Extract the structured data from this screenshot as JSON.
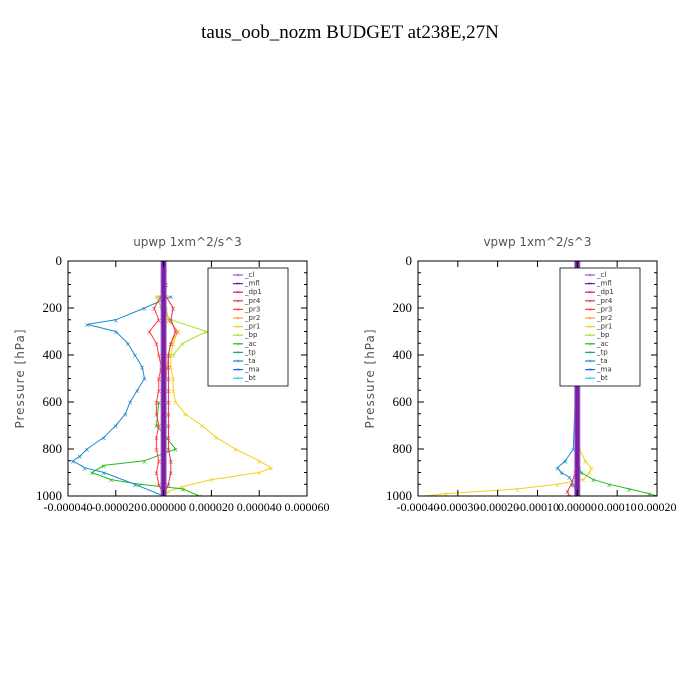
{
  "page": {
    "title": "taus_oob_nozm  BUDGET at238E,27N"
  },
  "legend_entries": [
    "_cl",
    "_mfl",
    "_dp1",
    "_pr4",
    "_pr3",
    "_pr2",
    "_pr1",
    "_bp",
    "_ac",
    "_tp",
    "_ta",
    "_ma",
    "_bt"
  ],
  "colors": {
    "_cl": "#9a5fd0",
    "_mfl": "#7a1fa0",
    "_dp1": "#c81e6e",
    "_pr4": "#e0304a",
    "_pr3": "#ff3c3c",
    "_pr2": "#ff9a3c",
    "_pr1": "#f2d21c",
    "_bp": "#a8e030",
    "_ac": "#22bb22",
    "_tp": "#22a0a0",
    "_ta": "#1c8ccc",
    "_ma": "#2a6ad0",
    "_bt": "#22d0d8"
  },
  "chart_data": [
    {
      "type": "line",
      "title": "upwp   1xm^2/s^3",
      "ylabel": "Pressure [hPa]",
      "xlim": [
        -4e-05,
        6e-05
      ],
      "ylim": [
        1000,
        0
      ],
      "y_ticks": [
        0,
        200,
        400,
        600,
        800,
        1000
      ],
      "y_tick_labels": [
        "0",
        "200",
        "400",
        "600",
        "800",
        "1000"
      ],
      "x_ticks": [
        -4e-05,
        -2e-05,
        0,
        2e-05,
        4e-05,
        6e-05
      ],
      "x_tick_labels": [
        "-0.000040",
        "-0.000020",
        "0.000000",
        "0.000020",
        "0.000040",
        "0.000060"
      ],
      "legend_position": "upper-right",
      "series": [
        {
          "name": "_pr1",
          "y": [
            50,
            100,
            150,
            200,
            250,
            300,
            350,
            400,
            450,
            500,
            550,
            600,
            650,
            700,
            750,
            800,
            850,
            880,
            900,
            930,
            960,
            980,
            1000
          ],
          "x": [
            0,
            5e-07,
            -8e-07,
            5e-07,
            2e-06,
            6e-06,
            4e-06,
            3e-06,
            3e-06,
            4e-06,
            4e-06,
            5e-06,
            9e-06,
            1.6e-05,
            2.2e-05,
            3e-05,
            4e-05,
            4.5e-05,
            4e-05,
            2e-05,
            8e-06,
            2e-06,
            0
          ]
        },
        {
          "name": "_pr2",
          "y": [
            150,
            200,
            250,
            300,
            350,
            400,
            450,
            500
          ],
          "x": [
            -2e-06,
            1e-06,
            2e-06,
            6e-06,
            3e-06,
            2e-06,
            1.5e-06,
            1e-06
          ]
        },
        {
          "name": "_bp",
          "y": [
            150,
            200,
            250,
            300,
            350,
            400
          ],
          "x": [
            -3e-06,
            -1e-06,
            3e-06,
            1.8e-05,
            8e-06,
            4e-06
          ]
        },
        {
          "name": "_ac",
          "y": [
            600,
            700,
            800,
            850,
            870,
            900,
            930,
            950,
            970,
            1000
          ],
          "x": [
            -2e-06,
            -3e-06,
            5e-06,
            -8e-06,
            -2.5e-05,
            -3e-05,
            -2.2e-05,
            -1e-05,
            8e-06,
            1.5e-05
          ]
        },
        {
          "name": "_ta",
          "y": [
            150,
            200,
            250,
            270,
            300,
            350,
            400,
            450,
            500,
            550,
            600,
            650,
            700,
            750,
            800,
            830,
            850,
            880,
            900,
            950,
            1000
          ],
          "x": [
            3e-06,
            -8e-06,
            -2e-05,
            -3.2e-05,
            -2e-05,
            -1.5e-05,
            -1.2e-05,
            -9e-06,
            -8e-06,
            -1.1e-05,
            -1.4e-05,
            -1.6e-05,
            -2e-05,
            -2.5e-05,
            -3.2e-05,
            -3.5e-05,
            -3.8e-05,
            -3.3e-05,
            -2.5e-05,
            -1.2e-05,
            0
          ]
        },
        {
          "name": "_pr3",
          "y": [
            50,
            100,
            150,
            200,
            250,
            300,
            350,
            400,
            450,
            500,
            550,
            600,
            650,
            700,
            750,
            800,
            850,
            900,
            950,
            1000
          ],
          "x": [
            0,
            1e-06,
            -1e-06,
            -4e-06,
            -2e-06,
            -6e-06,
            -3e-06,
            -2e-06,
            -1e-06,
            -2e-06,
            -2e-06,
            -3e-06,
            -3e-06,
            -2e-06,
            -3e-06,
            -3e-06,
            -2e-06,
            -3e-06,
            -2e-06,
            0
          ]
        },
        {
          "name": "_pr4",
          "y": [
            50,
            100,
            150,
            200,
            250,
            300,
            350,
            400,
            450,
            500,
            550,
            600,
            650,
            700,
            750,
            800,
            850,
            900,
            950,
            1000
          ],
          "x": [
            0,
            8e-07,
            1e-06,
            4e-06,
            3e-06,
            5e-06,
            3e-06,
            2e-06,
            2e-06,
            2e-06,
            2e-06,
            2e-06,
            2e-06,
            2e-06,
            2e-06,
            2e-06,
            3e-06,
            3e-06,
            2e-06,
            0
          ]
        },
        {
          "name": "_cl",
          "y": [
            0,
            1000
          ],
          "x": [
            0,
            0
          ]
        },
        {
          "name": "_mfl",
          "y": [
            0,
            1000
          ],
          "x": [
            0,
            0
          ]
        }
      ]
    },
    {
      "type": "line",
      "title": "vpwp   1xm^2/s^3",
      "ylabel": "Pressure [hPa]",
      "xlim": [
        -0.0004,
        0.0002
      ],
      "ylim": [
        1000,
        0
      ],
      "y_ticks": [
        0,
        200,
        400,
        600,
        800,
        1000
      ],
      "y_tick_labels": [
        "0",
        "200",
        "400",
        "600",
        "800",
        "1000"
      ],
      "x_ticks": [
        -0.0004,
        -0.0003,
        -0.0002,
        -0.0001,
        0,
        0.0001,
        0.0002
      ],
      "x_tick_labels": [
        "-0.00040",
        "-0.00030",
        "-0.00020",
        "-0.00010",
        "0.00000",
        "0.00010",
        "0.00020"
      ],
      "legend_position": "upper-right",
      "series": [
        {
          "name": "_pr1",
          "y": [
            800,
            850,
            880,
            900,
            930,
            950,
            970,
            990,
            1000
          ],
          "x": [
            5e-06,
            2e-05,
            3.5e-05,
            3e-05,
            1.5e-05,
            -5e-05,
            -0.00015,
            -0.00033,
            -0.00038
          ]
        },
        {
          "name": "_ac",
          "y": [
            850,
            880,
            900,
            930,
            950,
            970,
            990,
            1000
          ],
          "x": [
            0,
            5e-06,
            1e-05,
            4e-05,
            8e-05,
            0.00013,
            0.00018,
            0.0002
          ]
        },
        {
          "name": "_ta",
          "y": [
            200,
            250,
            280,
            300,
            320,
            350,
            800,
            850,
            880,
            900,
            920,
            950,
            1000
          ],
          "x": [
            0,
            -2e-05,
            -3.5e-05,
            -2e-05,
            -3e-05,
            0,
            -1e-05,
            -3e-05,
            -5e-05,
            -4e-05,
            -2e-05,
            -1e-05,
            0
          ]
        },
        {
          "name": "_pr4",
          "y": [
            850,
            900,
            950,
            980,
            1000
          ],
          "x": [
            0,
            -5e-06,
            -1.5e-05,
            -2.5e-05,
            -2e-05
          ]
        },
        {
          "name": "_cl",
          "y": [
            0,
            1000
          ],
          "x": [
            0,
            0
          ]
        },
        {
          "name": "_mfl",
          "y": [
            0,
            1000
          ],
          "x": [
            0,
            0
          ]
        }
      ]
    }
  ]
}
